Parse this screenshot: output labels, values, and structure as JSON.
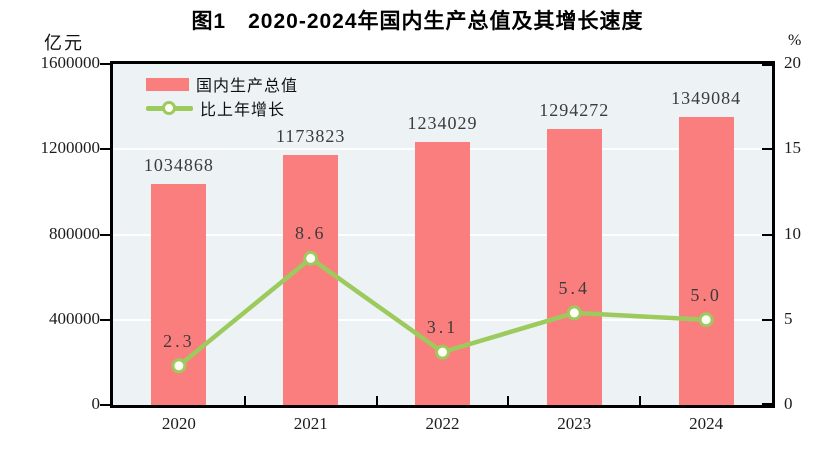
{
  "chart": {
    "title": "图1　2020-2024年国内生产总值及其增长速度"
  },
  "chart_data": {
    "type": "bar",
    "title": "图1 2020-2024年国内生产总值及其增长速度",
    "categories": [
      "2020",
      "2021",
      "2022",
      "2023",
      "2024"
    ],
    "series": [
      {
        "name": "国内生产总值",
        "type": "bar",
        "axis": "left",
        "values": [
          1034868,
          1173823,
          1234029,
          1294272,
          1349084
        ],
        "labels": [
          "1034868",
          "1173823",
          "1234029",
          "1294272",
          "1349084"
        ],
        "color": "#FB7E7E"
      },
      {
        "name": "比上年增长",
        "type": "line",
        "axis": "right",
        "values": [
          2.3,
          8.6,
          3.1,
          5.4,
          5.0
        ],
        "labels": [
          "2.3",
          "8.6",
          "3.1",
          "5.4",
          "5.0"
        ],
        "color": "#9CCA5D",
        "marker": "open-circle"
      }
    ],
    "left_axis": {
      "unit": "亿元",
      "ticks": [
        "0",
        "400000",
        "800000",
        "1200000",
        "1600000"
      ],
      "tick_values": [
        0,
        400000,
        800000,
        1200000,
        1600000
      ],
      "range": [
        0,
        1600000
      ]
    },
    "right_axis": {
      "unit": "%",
      "ticks": [
        "0",
        "5",
        "10",
        "15",
        "20"
      ],
      "tick_values": [
        0,
        5,
        10,
        15,
        20
      ],
      "range": [
        0,
        20
      ]
    },
    "grid": "horizontal-white-lines",
    "legend_position": "top-left-inside",
    "colors": {
      "plot_bg": "#EDF2F5",
      "gridline": "#FFFFFF",
      "axis_frame": "#000000",
      "bar": "#FB7E7E",
      "line": "#9CCA5D",
      "marker_fill": "#FEFEF6",
      "data_label_text": "#3B3B3B",
      "title_text": "#000000"
    }
  }
}
